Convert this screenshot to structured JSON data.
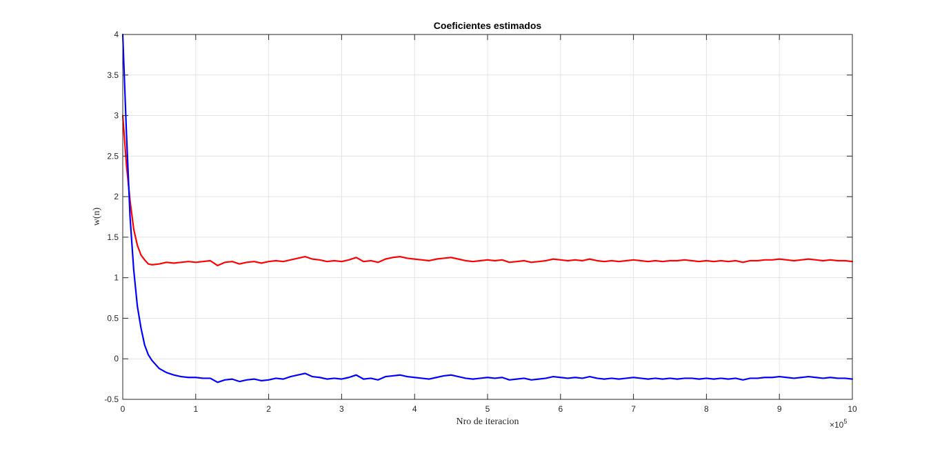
{
  "chart_data": {
    "type": "line",
    "title": "Coeficientes estimados",
    "xlabel": "Nro de iteracion",
    "ylabel": "w(n)",
    "x_multiplier": {
      "base": "×10",
      "exponent": "5"
    },
    "xlim": [
      0,
      10
    ],
    "ylim": [
      -0.5,
      4
    ],
    "xticks": [
      0,
      1,
      2,
      3,
      4,
      5,
      6,
      7,
      8,
      9,
      10
    ],
    "yticks": [
      -0.5,
      0,
      0.5,
      1,
      1.5,
      2,
      2.5,
      3,
      3.5,
      4
    ],
    "grid": true,
    "series": [
      {
        "color": "#ff0000",
        "x": [
          0,
          0.05,
          0.1,
          0.15,
          0.2,
          0.25,
          0.3,
          0.35,
          0.4,
          0.5,
          0.6,
          0.7,
          0.8,
          0.9,
          1.0,
          1.1,
          1.2,
          1.3,
          1.4,
          1.5,
          1.6,
          1.7,
          1.8,
          1.9,
          2.0,
          2.1,
          2.2,
          2.3,
          2.4,
          2.5,
          2.6,
          2.7,
          2.8,
          2.9,
          3.0,
          3.1,
          3.2,
          3.3,
          3.4,
          3.5,
          3.6,
          3.7,
          3.8,
          3.9,
          4.0,
          4.1,
          4.2,
          4.3,
          4.4,
          4.5,
          4.6,
          4.7,
          4.8,
          4.9,
          5.0,
          5.1,
          5.2,
          5.3,
          5.4,
          5.5,
          5.6,
          5.7,
          5.8,
          5.9,
          6.0,
          6.1,
          6.2,
          6.3,
          6.4,
          6.5,
          6.6,
          6.7,
          6.8,
          6.9,
          7.0,
          7.1,
          7.2,
          7.3,
          7.4,
          7.5,
          7.6,
          7.7,
          7.8,
          7.9,
          8.0,
          8.1,
          8.2,
          8.3,
          8.4,
          8.5,
          8.6,
          8.7,
          8.8,
          8.9,
          9.0,
          9.1,
          9.2,
          9.3,
          9.4,
          9.5,
          9.6,
          9.7,
          9.8,
          9.9,
          10.0
        ],
        "y": [
          3.0,
          2.4,
          1.95,
          1.6,
          1.4,
          1.28,
          1.22,
          1.17,
          1.16,
          1.17,
          1.19,
          1.18,
          1.19,
          1.2,
          1.19,
          1.2,
          1.21,
          1.15,
          1.19,
          1.2,
          1.17,
          1.19,
          1.2,
          1.18,
          1.2,
          1.21,
          1.2,
          1.22,
          1.24,
          1.26,
          1.23,
          1.22,
          1.2,
          1.21,
          1.2,
          1.22,
          1.25,
          1.2,
          1.21,
          1.19,
          1.23,
          1.25,
          1.26,
          1.24,
          1.23,
          1.22,
          1.21,
          1.23,
          1.24,
          1.25,
          1.23,
          1.21,
          1.2,
          1.21,
          1.22,
          1.21,
          1.22,
          1.19,
          1.2,
          1.21,
          1.19,
          1.2,
          1.21,
          1.23,
          1.22,
          1.21,
          1.22,
          1.21,
          1.23,
          1.21,
          1.2,
          1.21,
          1.2,
          1.21,
          1.22,
          1.21,
          1.2,
          1.21,
          1.2,
          1.21,
          1.21,
          1.22,
          1.21,
          1.2,
          1.21,
          1.2,
          1.21,
          1.2,
          1.21,
          1.19,
          1.21,
          1.21,
          1.22,
          1.22,
          1.23,
          1.22,
          1.21,
          1.22,
          1.23,
          1.22,
          1.21,
          1.22,
          1.21,
          1.21,
          1.2
        ]
      },
      {
        "color": "#0000ff",
        "x": [
          0,
          0.05,
          0.1,
          0.15,
          0.2,
          0.25,
          0.3,
          0.35,
          0.4,
          0.5,
          0.6,
          0.7,
          0.8,
          0.9,
          1.0,
          1.1,
          1.2,
          1.3,
          1.4,
          1.5,
          1.6,
          1.7,
          1.8,
          1.9,
          2.0,
          2.1,
          2.2,
          2.3,
          2.4,
          2.5,
          2.6,
          2.7,
          2.8,
          2.9,
          3.0,
          3.1,
          3.2,
          3.3,
          3.4,
          3.5,
          3.6,
          3.7,
          3.8,
          3.9,
          4.0,
          4.1,
          4.2,
          4.3,
          4.4,
          4.5,
          4.6,
          4.7,
          4.8,
          4.9,
          5.0,
          5.1,
          5.2,
          5.3,
          5.4,
          5.5,
          5.6,
          5.7,
          5.8,
          5.9,
          6.0,
          6.1,
          6.2,
          6.3,
          6.4,
          6.5,
          6.6,
          6.7,
          6.8,
          6.9,
          7.0,
          7.1,
          7.2,
          7.3,
          7.4,
          7.5,
          7.6,
          7.7,
          7.8,
          7.9,
          8.0,
          8.1,
          8.2,
          8.3,
          8.4,
          8.5,
          8.6,
          8.7,
          8.8,
          8.9,
          9.0,
          9.1,
          9.2,
          9.3,
          9.4,
          9.5,
          9.6,
          9.7,
          9.8,
          9.9,
          10.0
        ],
        "y": [
          4.0,
          2.8,
          1.75,
          1.1,
          0.65,
          0.38,
          0.17,
          0.05,
          -0.02,
          -0.12,
          -0.17,
          -0.2,
          -0.22,
          -0.23,
          -0.23,
          -0.24,
          -0.24,
          -0.29,
          -0.26,
          -0.25,
          -0.28,
          -0.26,
          -0.25,
          -0.27,
          -0.26,
          -0.24,
          -0.25,
          -0.22,
          -0.2,
          -0.18,
          -0.22,
          -0.23,
          -0.25,
          -0.24,
          -0.25,
          -0.23,
          -0.2,
          -0.25,
          -0.24,
          -0.26,
          -0.22,
          -0.21,
          -0.2,
          -0.22,
          -0.23,
          -0.24,
          -0.25,
          -0.23,
          -0.21,
          -0.2,
          -0.22,
          -0.24,
          -0.25,
          -0.24,
          -0.23,
          -0.24,
          -0.23,
          -0.26,
          -0.25,
          -0.24,
          -0.26,
          -0.25,
          -0.24,
          -0.22,
          -0.23,
          -0.24,
          -0.23,
          -0.24,
          -0.22,
          -0.24,
          -0.25,
          -0.24,
          -0.25,
          -0.24,
          -0.23,
          -0.24,
          -0.25,
          -0.24,
          -0.25,
          -0.24,
          -0.25,
          -0.24,
          -0.24,
          -0.25,
          -0.24,
          -0.25,
          -0.24,
          -0.25,
          -0.24,
          -0.26,
          -0.24,
          -0.24,
          -0.23,
          -0.23,
          -0.22,
          -0.23,
          -0.24,
          -0.23,
          -0.22,
          -0.23,
          -0.24,
          -0.23,
          -0.24,
          -0.24,
          -0.25
        ]
      }
    ]
  }
}
